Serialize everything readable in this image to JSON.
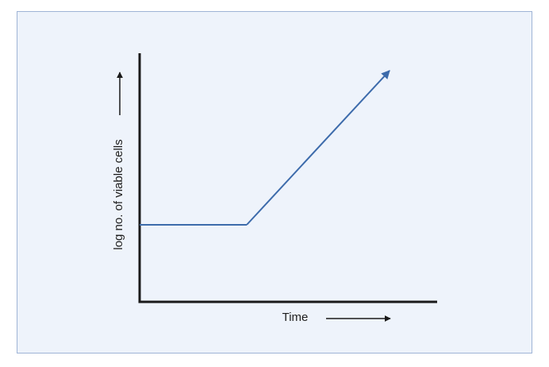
{
  "chart_data": {
    "type": "line",
    "title": "",
    "xlabel": "Time",
    "ylabel": "log no. of viable cells",
    "series": [
      {
        "points": [
          {
            "x": 0,
            "y": 3.1
          },
          {
            "x": 3.6,
            "y": 3.1
          },
          {
            "x": 8.4,
            "y": 9.3
          }
        ]
      }
    ],
    "xlim": [
      0,
      10
    ],
    "ylim": [
      0,
      10
    ],
    "grid": false,
    "legend": "none",
    "line_end": "arrow"
  },
  "colors": {
    "background": "#eef3fb",
    "frame": "#9fb4d6",
    "axis": "#1a1a1a",
    "series": "#3d6bab"
  }
}
